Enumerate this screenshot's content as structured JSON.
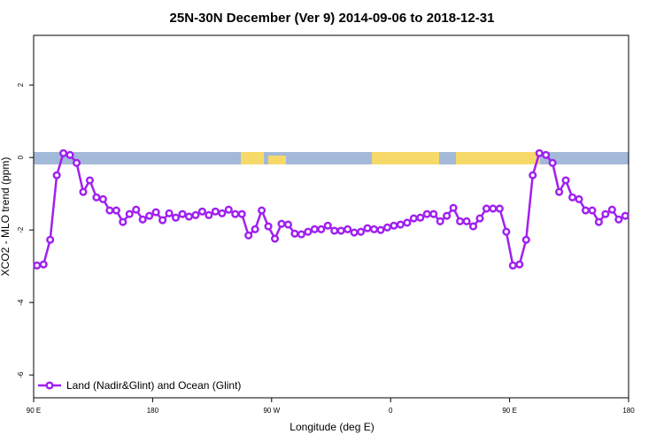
{
  "chart_data": {
    "type": "line",
    "title": "25N-30N December (Ver 9)   2014-09-06 to 2018-12-31",
    "xlabel": "Longitude (deg E)",
    "ylabel": "XCO2 - MLO trend (ppm)",
    "xlim": [
      90,
      540
    ],
    "ylim": [
      -6.63,
      3.37
    ],
    "xticks": [
      {
        "value": 90,
        "label": "90 E"
      },
      {
        "value": 180,
        "label": "180"
      },
      {
        "value": 270,
        "label": "90 W"
      },
      {
        "value": 360,
        "label": "0"
      },
      {
        "value": 450,
        "label": "90 E"
      },
      {
        "value": 540,
        "label": "180"
      }
    ],
    "yticks": [
      -6,
      -4,
      -2,
      0,
      2
    ],
    "legend": "bottom-left",
    "series": [
      {
        "name": "Land (Nadir&Glint) and Ocean (Glint)",
        "color": "#a020f0",
        "x": [
          92.5,
          97.5,
          102.5,
          107.5,
          112.5,
          117.5,
          122.5,
          127.5,
          132.5,
          137.5,
          142.5,
          147.5,
          152.5,
          157.5,
          162.5,
          167.5,
          172.5,
          177.5,
          182.5,
          187.5,
          192.5,
          197.5,
          202.5,
          207.5,
          212.5,
          217.5,
          222.5,
          227.5,
          232.5,
          237.5,
          242.5,
          247.5,
          252.5,
          257.5,
          262.5,
          267.5,
          272.5,
          277.5,
          282.5,
          287.5,
          292.5,
          297.5,
          302.5,
          307.5,
          312.5,
          317.5,
          322.5,
          327.5,
          332.5,
          337.5,
          342.5,
          347.5,
          352.5,
          357.5,
          362.5,
          367.5,
          372.5,
          377.5,
          382.5,
          387.5,
          392.5,
          397.5,
          402.5,
          407.5,
          412.5,
          417.5,
          422.5,
          427.5,
          432.5,
          437.5,
          442.5,
          447.5,
          452.5,
          457.5,
          462.5,
          467.5,
          472.5,
          477.5,
          482.5,
          487.5,
          492.5,
          497.5,
          502.5,
          507.5,
          512.5,
          517.5,
          522.5,
          527.5,
          532.5,
          537.5
        ],
        "values": [
          -2.98,
          -2.95,
          -2.27,
          -0.49,
          0.12,
          0.07,
          -0.15,
          -0.95,
          -0.63,
          -1.1,
          -1.15,
          -1.46,
          -1.46,
          -1.78,
          -1.56,
          -1.44,
          -1.71,
          -1.61,
          -1.51,
          -1.73,
          -1.54,
          -1.66,
          -1.56,
          -1.63,
          -1.59,
          -1.49,
          -1.59,
          -1.49,
          -1.54,
          -1.44,
          -1.56,
          -1.56,
          -2.15,
          -1.98,
          -1.46,
          -1.9,
          -2.24,
          -1.83,
          -1.85,
          -2.1,
          -2.12,
          -2.05,
          -1.98,
          -1.98,
          -1.88,
          -2.02,
          -2.02,
          -1.98,
          -2.07,
          -2.05,
          -1.95,
          -1.98,
          -2.0,
          -1.93,
          -1.88,
          -1.85,
          -1.8,
          -1.68,
          -1.66,
          -1.56,
          -1.56,
          -1.76,
          -1.61,
          -1.39,
          -1.76,
          -1.76,
          -1.9,
          -1.68,
          -1.41,
          -1.41,
          -1.41,
          -2.05,
          -2.98,
          -2.95,
          -2.27,
          -0.49,
          0.12,
          0.07,
          -0.15,
          -0.95,
          -0.63,
          -1.1,
          -1.15,
          -1.46,
          -1.46,
          -1.78,
          -1.56,
          -1.44,
          -1.71,
          -1.61
        ]
      }
    ]
  }
}
